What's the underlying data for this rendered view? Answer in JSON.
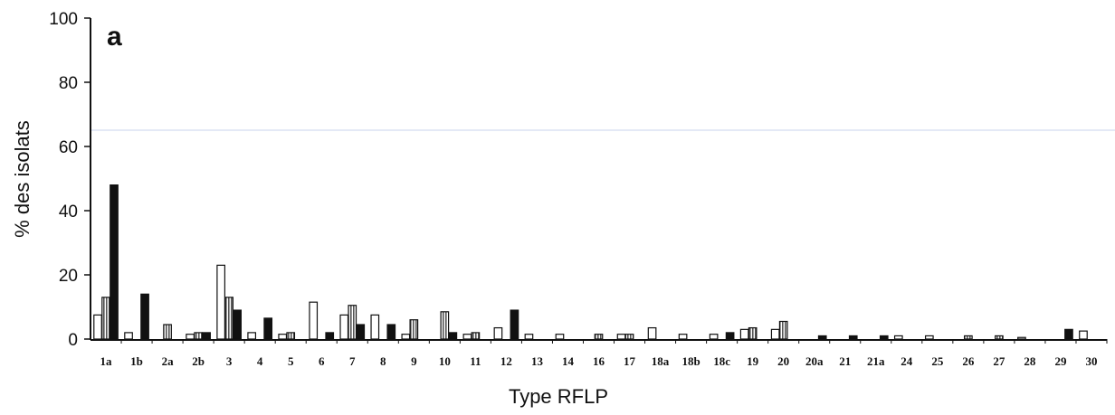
{
  "chart_data": {
    "type": "bar",
    "panel_label": "a",
    "xlabel": "Type RFLP",
    "ylabel": "% des isolats",
    "ylim": [
      0,
      100
    ],
    "yticks": [
      0,
      20,
      40,
      60,
      80,
      100
    ],
    "grid": false,
    "legend": "none",
    "categories": [
      "1a",
      "1b",
      "2a",
      "2b",
      "3",
      "4",
      "5",
      "6",
      "7",
      "8",
      "9",
      "10",
      "11",
      "12",
      "13",
      "14",
      "16",
      "17",
      "18a",
      "18b",
      "18c",
      "19",
      "20",
      "20a",
      "21",
      "21a",
      "24",
      "25",
      "26",
      "27",
      "28",
      "29",
      "30"
    ],
    "series": [
      {
        "fill": "white",
        "values": [
          7.5,
          2,
          0,
          1.5,
          23,
          2,
          1.5,
          11.5,
          7.5,
          7.5,
          1.5,
          0,
          1.5,
          3.5,
          1.5,
          1.5,
          0,
          1.5,
          3.5,
          1.5,
          1.5,
          3,
          3,
          0,
          0,
          0,
          1,
          1,
          0,
          0,
          0.5,
          0,
          2.5
        ]
      },
      {
        "fill": "hatched",
        "values": [
          13,
          0,
          4.5,
          2,
          13,
          0,
          2,
          0,
          10.5,
          0,
          6,
          8.5,
          2,
          0,
          0,
          0,
          1.5,
          1.5,
          0,
          0,
          0,
          3.5,
          5.5,
          0,
          0,
          0,
          0,
          0,
          1,
          1,
          0,
          0,
          0
        ]
      },
      {
        "fill": "black",
        "values": [
          48,
          14,
          0,
          2,
          9,
          6.5,
          0,
          2,
          4.5,
          4.5,
          0,
          2,
          0,
          9,
          0,
          0,
          0,
          0,
          0,
          0,
          2,
          0,
          0,
          1,
          1,
          1,
          0,
          0,
          0,
          0,
          0,
          3,
          0
        ]
      }
    ]
  }
}
